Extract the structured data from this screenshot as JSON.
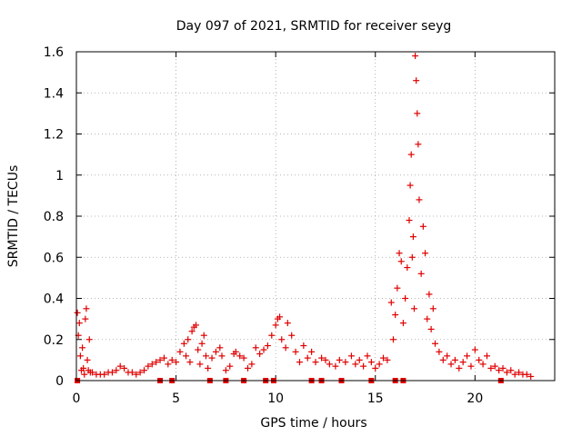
{
  "chart_data": {
    "type": "scatter",
    "title": "Day 097 of 2021, SRMTID for receiver seyg",
    "xlabel": "GPS time / hours",
    "ylabel": "SRMTID / TECUs",
    "xlim": [
      0,
      24
    ],
    "ylim": [
      0,
      1.6
    ],
    "x_ticks": [
      0,
      5,
      10,
      15,
      20
    ],
    "x_tick_labels": [
      "0",
      "5",
      "10",
      "15",
      "20"
    ],
    "y_ticks": [
      0,
      0.2,
      0.4,
      0.6,
      0.8,
      1.0,
      1.2,
      1.4,
      1.6
    ],
    "y_tick_labels": [
      "0",
      "0.2",
      "0.4",
      "0.6",
      "0.8",
      "1",
      "1.2",
      "1.4",
      "1.6"
    ],
    "grid": true,
    "marker": "+",
    "color": "#e00000",
    "series": [
      {
        "name": "SRMTID",
        "points": [
          [
            0.05,
            0.33
          ],
          [
            0.1,
            0.22
          ],
          [
            0.15,
            0.28
          ],
          [
            0.2,
            0.12
          ],
          [
            0.25,
            0.05
          ],
          [
            0.3,
            0.16
          ],
          [
            0.35,
            0.06
          ],
          [
            0.4,
            0.03
          ],
          [
            0.45,
            0.3
          ],
          [
            0.5,
            0.35
          ],
          [
            0.55,
            0.1
          ],
          [
            0.6,
            0.05
          ],
          [
            0.65,
            0.2
          ],
          [
            0.7,
            0.04
          ],
          [
            0.8,
            0.04
          ],
          [
            1.0,
            0.03
          ],
          [
            1.2,
            0.03
          ],
          [
            1.4,
            0.03
          ],
          [
            1.6,
            0.04
          ],
          [
            1.8,
            0.04
          ],
          [
            2.0,
            0.05
          ],
          [
            2.2,
            0.07
          ],
          [
            2.4,
            0.06
          ],
          [
            2.6,
            0.04
          ],
          [
            2.8,
            0.04
          ],
          [
            3.0,
            0.03
          ],
          [
            3.2,
            0.04
          ],
          [
            3.4,
            0.05
          ],
          [
            3.6,
            0.07
          ],
          [
            3.8,
            0.08
          ],
          [
            4.0,
            0.09
          ],
          [
            4.2,
            0.1
          ],
          [
            4.4,
            0.11
          ],
          [
            4.6,
            0.08
          ],
          [
            4.8,
            0.1
          ],
          [
            5.0,
            0.09
          ],
          [
            5.2,
            0.14
          ],
          [
            5.4,
            0.18
          ],
          [
            5.5,
            0.12
          ],
          [
            5.6,
            0.2
          ],
          [
            5.7,
            0.09
          ],
          [
            5.8,
            0.24
          ],
          [
            5.9,
            0.26
          ],
          [
            6.0,
            0.27
          ],
          [
            6.1,
            0.15
          ],
          [
            6.2,
            0.08
          ],
          [
            6.3,
            0.18
          ],
          [
            6.4,
            0.22
          ],
          [
            6.5,
            0.12
          ],
          [
            6.6,
            0.06
          ],
          [
            6.8,
            0.11
          ],
          [
            7.0,
            0.14
          ],
          [
            7.2,
            0.16
          ],
          [
            7.3,
            0.12
          ],
          [
            7.5,
            0.05
          ],
          [
            7.7,
            0.07
          ],
          [
            7.9,
            0.13
          ],
          [
            8.0,
            0.14
          ],
          [
            8.2,
            0.12
          ],
          [
            8.4,
            0.11
          ],
          [
            8.6,
            0.06
          ],
          [
            8.8,
            0.08
          ],
          [
            9.0,
            0.16
          ],
          [
            9.2,
            0.13
          ],
          [
            9.4,
            0.15
          ],
          [
            9.6,
            0.17
          ],
          [
            9.8,
            0.22
          ],
          [
            10.0,
            0.27
          ],
          [
            10.1,
            0.3
          ],
          [
            10.2,
            0.31
          ],
          [
            10.3,
            0.2
          ],
          [
            10.5,
            0.16
          ],
          [
            10.6,
            0.28
          ],
          [
            10.8,
            0.22
          ],
          [
            11.0,
            0.14
          ],
          [
            11.2,
            0.09
          ],
          [
            11.4,
            0.17
          ],
          [
            11.6,
            0.11
          ],
          [
            11.8,
            0.14
          ],
          [
            12.0,
            0.09
          ],
          [
            12.3,
            0.11
          ],
          [
            12.5,
            0.1
          ],
          [
            12.7,
            0.08
          ],
          [
            13.0,
            0.07
          ],
          [
            13.2,
            0.1
          ],
          [
            13.5,
            0.09
          ],
          [
            13.8,
            0.12
          ],
          [
            14.0,
            0.08
          ],
          [
            14.2,
            0.1
          ],
          [
            14.4,
            0.07
          ],
          [
            14.6,
            0.12
          ],
          [
            14.8,
            0.09
          ],
          [
            15.0,
            0.06
          ],
          [
            15.2,
            0.08
          ],
          [
            15.4,
            0.11
          ],
          [
            15.6,
            0.1
          ],
          [
            15.8,
            0.38
          ],
          [
            15.9,
            0.2
          ],
          [
            16.0,
            0.32
          ],
          [
            16.1,
            0.45
          ],
          [
            16.2,
            0.62
          ],
          [
            16.3,
            0.58
          ],
          [
            16.4,
            0.28
          ],
          [
            16.5,
            0.4
          ],
          [
            16.6,
            0.55
          ],
          [
            16.7,
            0.78
          ],
          [
            16.75,
            0.95
          ],
          [
            16.8,
            1.1
          ],
          [
            16.85,
            0.6
          ],
          [
            16.9,
            0.7
          ],
          [
            16.95,
            0.35
          ],
          [
            17.0,
            1.58
          ],
          [
            17.05,
            1.46
          ],
          [
            17.1,
            1.3
          ],
          [
            17.15,
            1.15
          ],
          [
            17.2,
            0.88
          ],
          [
            17.3,
            0.52
          ],
          [
            17.4,
            0.75
          ],
          [
            17.5,
            0.62
          ],
          [
            17.6,
            0.3
          ],
          [
            17.7,
            0.42
          ],
          [
            17.8,
            0.25
          ],
          [
            17.9,
            0.35
          ],
          [
            18.0,
            0.18
          ],
          [
            18.2,
            0.14
          ],
          [
            18.4,
            0.1
          ],
          [
            18.6,
            0.12
          ],
          [
            18.8,
            0.08
          ],
          [
            19.0,
            0.1
          ],
          [
            19.2,
            0.06
          ],
          [
            19.4,
            0.09
          ],
          [
            19.6,
            0.12
          ],
          [
            19.8,
            0.07
          ],
          [
            20.0,
            0.15
          ],
          [
            20.2,
            0.1
          ],
          [
            20.4,
            0.08
          ],
          [
            20.6,
            0.12
          ],
          [
            20.8,
            0.06
          ],
          [
            21.0,
            0.07
          ],
          [
            21.2,
            0.05
          ],
          [
            21.4,
            0.06
          ],
          [
            21.6,
            0.04
          ],
          [
            21.8,
            0.05
          ],
          [
            22.0,
            0.03
          ],
          [
            22.2,
            0.04
          ],
          [
            22.4,
            0.03
          ],
          [
            22.6,
            0.03
          ],
          [
            22.8,
            0.02
          ]
        ]
      }
    ],
    "baseline_markers": {
      "y": 0,
      "x": [
        0.05,
        4.2,
        4.8,
        6.7,
        7.5,
        8.4,
        9.5,
        9.9,
        11.8,
        12.3,
        13.3,
        14.8,
        16.0,
        16.4,
        21.3
      ]
    }
  }
}
